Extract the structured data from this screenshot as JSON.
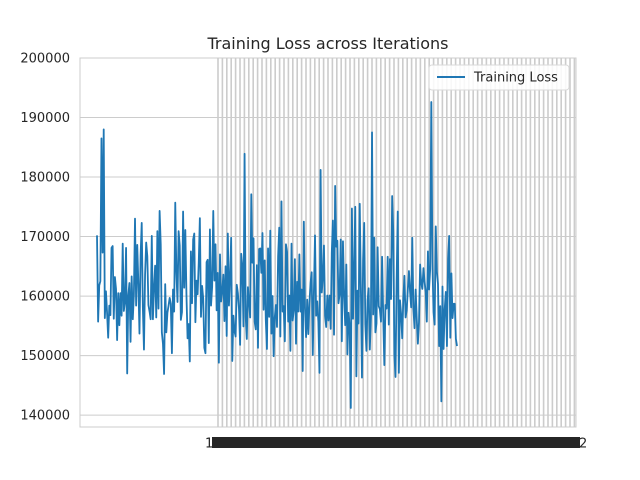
{
  "chart_data": {
    "type": "line",
    "title": "Training Loss across Iterations",
    "xlabel": "",
    "ylabel": "",
    "ylim": [
      138000,
      200000
    ],
    "yticks": [
      140000,
      150000,
      160000,
      170000,
      180000,
      190000,
      200000
    ],
    "ytick_labels": [
      "140000",
      "150000",
      "160000",
      "170000",
      "180000",
      "190000",
      "200000"
    ],
    "xtick_visible_labels": [
      "1",
      "2"
    ],
    "legend": {
      "placement": "top-right",
      "entries": [
        "Training Loss"
      ]
    },
    "grid": true,
    "line_color": "#1f77b4",
    "grid_color": "#cccccc",
    "series": [
      {
        "name": "Training Loss",
        "values": [
          170200,
          155700,
          161800,
          162500,
          186500,
          167300,
          188000,
          156300,
          160800,
          157200,
          153000,
          158400,
          156800,
          168100,
          168400,
          156200,
          163200,
          161200,
          152600,
          160500,
          155100,
          160500,
          156700,
          168800,
          157500,
          159000,
          168100,
          147000,
          160100,
          162200,
          152300,
          163300,
          156100,
          160300,
          173000,
          158400,
          168600,
          162000,
          153700,
          166800,
          172300,
          158200,
          151000,
          163600,
          169000,
          166700,
          158500,
          157400,
          156100,
          170100,
          156100,
          161300,
          165100,
          156400,
          170900,
          157900,
          174300,
          168700,
          153900,
          152000,
          146900,
          162000,
          153900,
          157200,
          158400,
          159700,
          158700,
          150400,
          161100,
          157400,
          175700,
          164000,
          159000,
          170900,
          168500,
          156000,
          157300,
          174200,
          161400,
          171100,
          160300,
          152900,
          155300,
          149000,
          167500,
          158800,
          169500,
          170500,
          155600,
          162600,
          160300,
          165600,
          173100,
          156500,
          161700,
          159600,
          151300,
          150400,
          165700,
          166100,
          152100,
          171200,
          158400,
          161600,
          174300,
          162600,
          168700,
          157600,
          163900,
          148800,
          167000,
          159100,
          160700,
          163600,
          155800,
          165000,
          153300,
          170500,
          158400,
          163000,
          169800,
          149100,
          156700,
          154100,
          153200,
          161900,
          160500,
          157800,
          151800,
          167100,
          165000,
          154900,
          183900,
          156500,
          152800,
          161500,
          158900,
          156400,
          177100,
          165600,
          169700,
          155700,
          154400,
          165200,
          151300,
          167900,
          168000,
          163900,
          170600,
          157700,
          166000,
          155900,
          151100,
          168000,
          156500,
          171000,
          153700,
          160000,
          149900,
          156400,
          158500,
          154800,
          166700,
          171500,
          153200,
          175900,
          157400,
          158300,
          152400,
          168700,
          167400,
          155700,
          160100,
          150800,
          168800,
          155900,
          157600,
          166200,
          152000,
          162400,
          157400,
          167000,
          157400,
          161100,
          147400,
          172500,
          158200,
          153100,
          159400,
          153600,
          158800,
          162200,
          164000,
          150100,
          160500,
          170200,
          156700,
          159100,
          155700,
          147100,
          181200,
          160600,
          162900,
          168500,
          156700,
          154800,
          160100,
          155900,
          160100,
          154500,
          167300,
          172700,
          153500,
          178500,
          168300,
          169300,
          158800,
          160300,
          169500,
          152400,
          169200,
          160300,
          155100,
          165300,
          150200,
          157200,
          155100,
          141200,
          174700,
          156200,
          164600,
          175000,
          146500,
          160900,
          155400,
          175500,
          161500,
          146300,
          166000,
          172300,
          155300,
          150800,
          159300,
          161300,
          151000,
          156400,
          187500,
          156900,
          169800,
          153900,
          155400,
          168200,
          158300,
          157800,
          155700,
          166600,
          156800,
          148400,
          158500,
          157900,
          166600,
          155200,
          166200,
          159500,
          176800,
          170700,
          150100,
          146400,
          162700,
          174200,
          147100,
          159300,
          157000,
          152900,
          159700,
          163400,
          156400,
          157600,
          161100,
          164200,
          160800,
          158100,
          169800,
          157900,
          154600,
          161100,
          156200,
          152000,
          155600,
          165300,
          162200,
          161200,
          164700,
          162400,
          160700,
          155700,
          167500,
          161100,
          164500,
          192600,
          165700,
          157300,
          155200,
          171700,
          164100,
          162000,
          151600,
          158300,
          142300,
          161600,
          151100,
          157800,
          160700,
          151600,
          166200,
          170100,
          153000,
          163800,
          156300,
          158700,
          158700,
          152800,
          151600
        ]
      }
    ]
  }
}
